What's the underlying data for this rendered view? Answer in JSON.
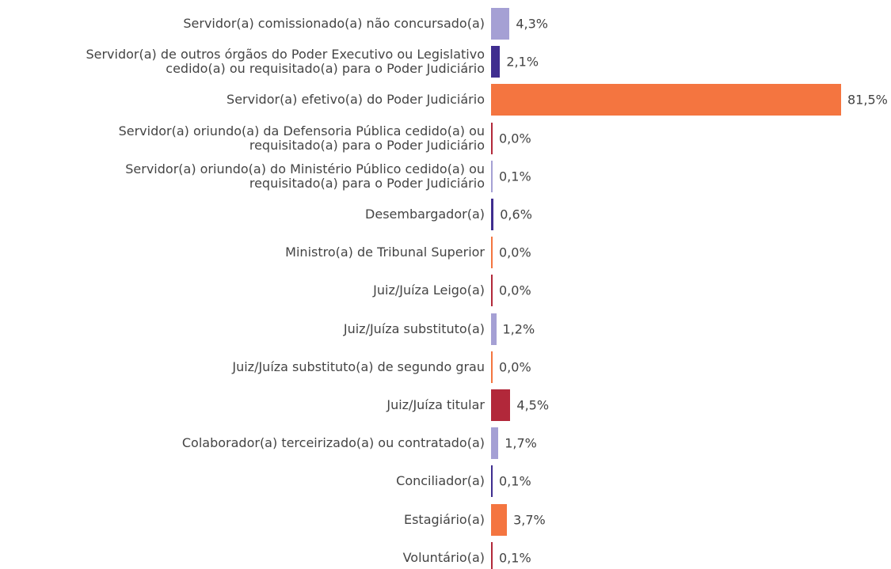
{
  "chart_data": {
    "type": "bar",
    "orientation": "horizontal",
    "categories": [
      "Servidor(a) comissionado(a) não concursado(a)",
      "Servidor(a) de outros órgãos do Poder Executivo ou Legislativo\ncedido(a) ou requisitado(a) para o Poder Judiciário",
      "Servidor(a) efetivo(a) do Poder Judiciário",
      "Servidor(a) oriundo(a) da Defensoria Pública cedido(a) ou\nrequisitado(a) para o Poder Judiciário",
      "Servidor(a) oriundo(a) do Ministério Público cedido(a) ou\nrequisitado(a) para o Poder Judiciário",
      "Desembargador(a)",
      "Ministro(a) de Tribunal Superior",
      "Juiz/Juíza Leigo(a)",
      "Juiz/Juíza substituto(a)",
      "Juiz/Juíza substituto(a) de segundo grau",
      "Juiz/Juíza titular",
      "Colaborador(a) terceirizado(a) ou contratado(a)",
      "Conciliador(a)",
      "Estagiário(a)",
      "Voluntário(a)"
    ],
    "values": [
      4.3,
      2.1,
      81.5,
      0.0,
      0.1,
      0.6,
      0.0,
      0.0,
      1.2,
      0.0,
      4.5,
      1.7,
      0.1,
      3.7,
      0.1
    ],
    "value_labels": [
      "4,3%",
      "2,1%",
      "81,5%",
      "0,0%",
      "0,1%",
      "0,6%",
      "0,0%",
      "0,0%",
      "1,2%",
      "0,0%",
      "4,5%",
      "1,7%",
      "0,1%",
      "3,7%",
      "0,1%"
    ],
    "colors": [
      "#a5a0d4",
      "#3f2d8f",
      "#f47540",
      "#b2283a",
      "#a5a0d4",
      "#3f2d8f",
      "#f47540",
      "#b2283a",
      "#a5a0d4",
      "#f47540",
      "#b2283a",
      "#a5a0d4",
      "#3f2d8f",
      "#f47540",
      "#b2283a"
    ]
  }
}
